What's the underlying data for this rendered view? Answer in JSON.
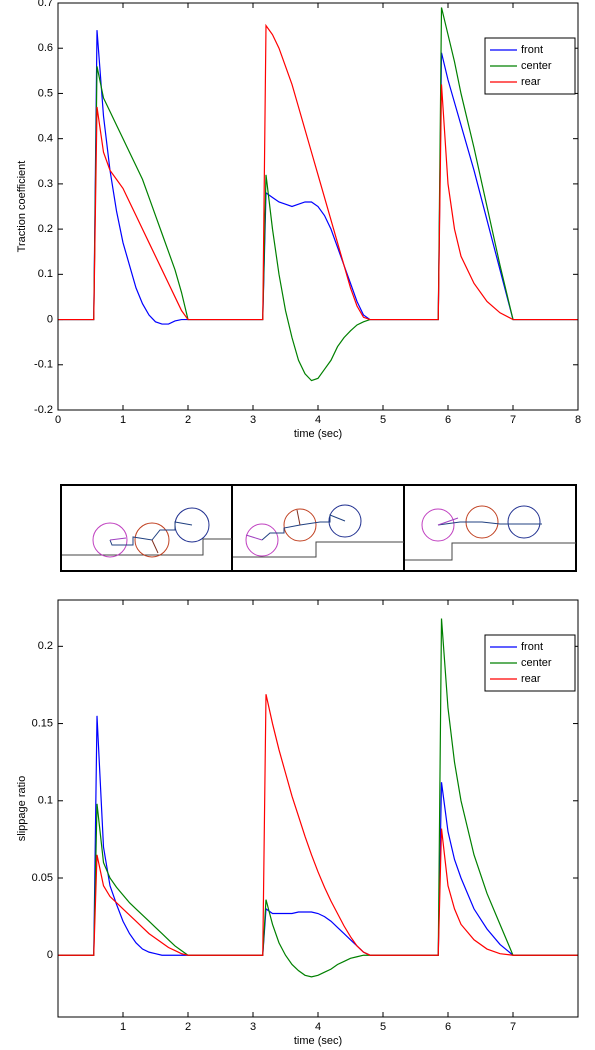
{
  "chart_data": [
    {
      "type": "line",
      "xlabel": "time (sec)",
      "ylabel": "Traction coefficient",
      "xlim": [
        0,
        8
      ],
      "ylim": [
        -0.2,
        0.7
      ],
      "xticks": [
        0,
        1,
        2,
        3,
        4,
        5,
        6,
        7,
        8
      ],
      "yticks": [
        -0.2,
        -0.1,
        0,
        0.1,
        0.2,
        0.3,
        0.4,
        0.5,
        0.6,
        0.7
      ],
      "legend": "upper right",
      "x": [
        0,
        0.55,
        0.6,
        0.7,
        0.8,
        0.9,
        1.0,
        1.1,
        1.2,
        1.3,
        1.4,
        1.5,
        1.6,
        1.7,
        1.8,
        1.9,
        2.0,
        3.15,
        3.2,
        3.3,
        3.4,
        3.5,
        3.6,
        3.7,
        3.8,
        3.9,
        4.0,
        4.1,
        4.2,
        4.3,
        4.4,
        4.5,
        4.6,
        4.7,
        4.8,
        5.85,
        5.9,
        6.0,
        6.1,
        6.2,
        6.4,
        6.6,
        6.8,
        7.0,
        8
      ],
      "series": [
        {
          "name": "front",
          "color": "#0000ff",
          "values": [
            0,
            0,
            0.64,
            0.45,
            0.33,
            0.24,
            0.17,
            0.12,
            0.07,
            0.035,
            0.01,
            -0.005,
            -0.01,
            -0.01,
            -0.003,
            0,
            0,
            0,
            0.28,
            0.27,
            0.26,
            0.255,
            0.25,
            0.255,
            0.26,
            0.26,
            0.25,
            0.23,
            0.2,
            0.16,
            0.12,
            0.08,
            0.04,
            0.01,
            0,
            0,
            0.59,
            0.53,
            0.48,
            0.43,
            0.33,
            0.22,
            0.11,
            0,
            0
          ]
        },
        {
          "name": "center",
          "color": "#008000",
          "values": [
            0,
            0,
            0.56,
            0.49,
            0.46,
            0.43,
            0.4,
            0.37,
            0.34,
            0.31,
            0.27,
            0.23,
            0.19,
            0.15,
            0.11,
            0.06,
            0,
            0,
            0.32,
            0.2,
            0.1,
            0.02,
            -0.04,
            -0.09,
            -0.12,
            -0.135,
            -0.13,
            -0.11,
            -0.09,
            -0.06,
            -0.04,
            -0.025,
            -0.012,
            -0.005,
            0,
            0,
            0.69,
            0.63,
            0.57,
            0.5,
            0.38,
            0.25,
            0.12,
            0,
            0
          ]
        },
        {
          "name": "rear",
          "color": "#ff0000",
          "values": [
            0,
            0,
            0.47,
            0.37,
            0.33,
            0.31,
            0.29,
            0.26,
            0.23,
            0.2,
            0.17,
            0.14,
            0.11,
            0.08,
            0.05,
            0.02,
            0,
            0,
            0.65,
            0.63,
            0.6,
            0.56,
            0.52,
            0.47,
            0.42,
            0.37,
            0.32,
            0.27,
            0.22,
            0.17,
            0.12,
            0.07,
            0.03,
            0.005,
            0,
            0,
            0.52,
            0.3,
            0.2,
            0.14,
            0.08,
            0.04,
            0.015,
            0,
            0
          ]
        }
      ]
    },
    {
      "type": "line",
      "xlabel": "time (sec)",
      "ylabel": "slippage ratio",
      "xlim": [
        0,
        8
      ],
      "ylim": [
        -0.04,
        0.23
      ],
      "xticks": [
        1,
        2,
        3,
        4,
        5,
        6,
        7
      ],
      "yticks": [
        0,
        0.05,
        0.1,
        0.15,
        0.2
      ],
      "legend": "upper right",
      "x": [
        0,
        0.55,
        0.6,
        0.7,
        0.8,
        0.9,
        1.0,
        1.1,
        1.2,
        1.3,
        1.4,
        1.5,
        1.6,
        1.7,
        1.8,
        1.9,
        2.0,
        3.15,
        3.2,
        3.3,
        3.4,
        3.5,
        3.6,
        3.7,
        3.8,
        3.9,
        4.0,
        4.1,
        4.2,
        4.3,
        4.4,
        4.5,
        4.6,
        4.7,
        4.8,
        5.85,
        5.9,
        6.0,
        6.1,
        6.2,
        6.4,
        6.6,
        6.8,
        7.0,
        8
      ],
      "series": [
        {
          "name": "front",
          "color": "#0000ff",
          "values": [
            0,
            0,
            0.155,
            0.07,
            0.045,
            0.033,
            0.022,
            0.014,
            0.008,
            0.004,
            0.002,
            0.001,
            0,
            0,
            0,
            0,
            0,
            0,
            0.03,
            0.027,
            0.027,
            0.027,
            0.027,
            0.028,
            0.028,
            0.028,
            0.027,
            0.025,
            0.022,
            0.018,
            0.014,
            0.01,
            0.006,
            0.002,
            0,
            0,
            0.112,
            0.08,
            0.062,
            0.05,
            0.03,
            0.017,
            0.007,
            0,
            0
          ]
        },
        {
          "name": "center",
          "color": "#008000",
          "values": [
            0,
            0,
            0.098,
            0.06,
            0.05,
            0.044,
            0.039,
            0.034,
            0.03,
            0.026,
            0.022,
            0.018,
            0.014,
            0.01,
            0.006,
            0.003,
            0,
            0,
            0.036,
            0.02,
            0.008,
            0,
            -0.006,
            -0.01,
            -0.013,
            -0.014,
            -0.013,
            -0.011,
            -0.009,
            -0.006,
            -0.004,
            -0.002,
            -0.001,
            0,
            0,
            0,
            0.218,
            0.16,
            0.125,
            0.1,
            0.065,
            0.04,
            0.02,
            0,
            0
          ]
        },
        {
          "name": "rear",
          "color": "#ff0000",
          "values": [
            0,
            0,
            0.065,
            0.045,
            0.038,
            0.034,
            0.03,
            0.026,
            0.022,
            0.018,
            0.014,
            0.011,
            0.008,
            0.005,
            0.003,
            0.001,
            0,
            0,
            0.169,
            0.15,
            0.133,
            0.118,
            0.103,
            0.09,
            0.077,
            0.065,
            0.054,
            0.044,
            0.035,
            0.027,
            0.019,
            0.012,
            0.006,
            0.002,
            0,
            0,
            0.082,
            0.045,
            0.03,
            0.02,
            0.01,
            0.004,
            0.001,
            0,
            0
          ]
        }
      ]
    }
  ]
}
